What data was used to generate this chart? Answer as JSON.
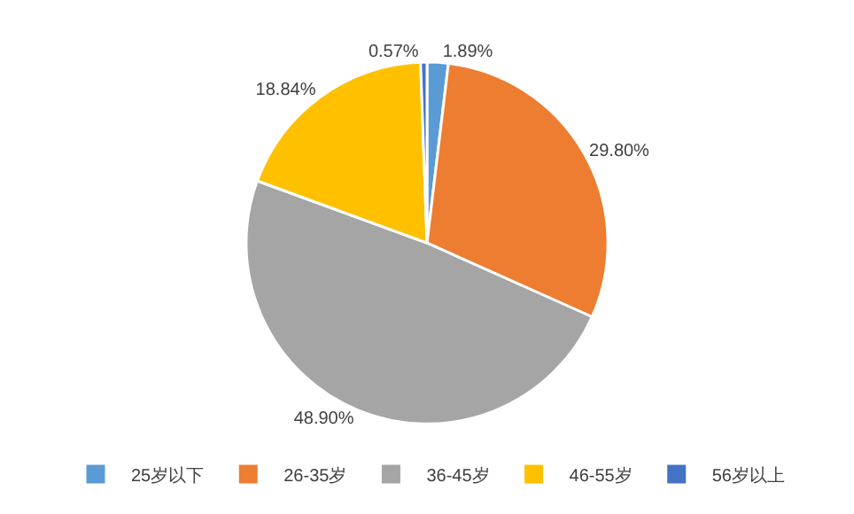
{
  "chart_data": {
    "type": "pie",
    "categories": [
      "25岁以下",
      "26-35岁",
      "36-45岁",
      "46-55岁",
      "56岁以上"
    ],
    "values": [
      1.89,
      29.8,
      48.9,
      18.84,
      0.57
    ],
    "value_labels": [
      "1.89%",
      "29.80%",
      "48.90%",
      "18.84%",
      "0.57%"
    ],
    "colors": [
      "#5b9bd5",
      "#ed7d31",
      "#a5a5a5",
      "#ffc000",
      "#4472c4"
    ],
    "legend": "bottom"
  }
}
